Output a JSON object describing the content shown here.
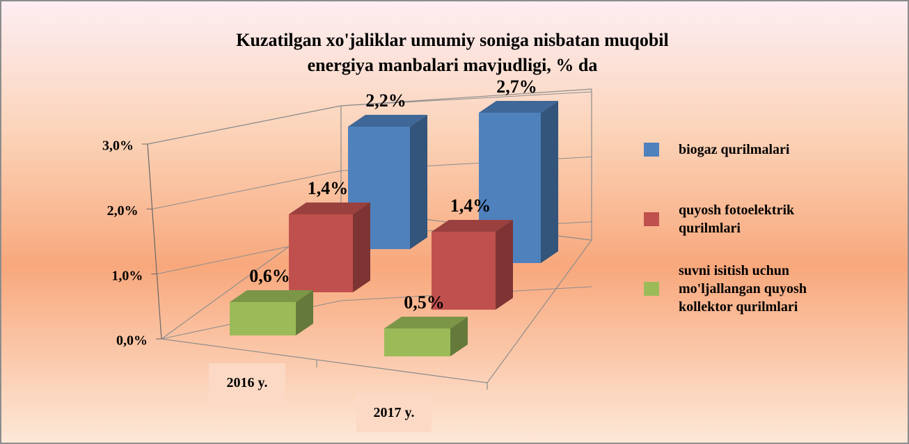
{
  "chart_data": {
    "type": "bar3d",
    "title": "Kuzatilgan xo'jaliklar umumiy soniga nisbatan muqobil energiya manbalari mavjudligi, % da",
    "categories": [
      "2016 y.",
      "2017 y."
    ],
    "series": [
      {
        "name": "biogaz qurilmalari",
        "color": "#4f81bd",
        "values": [
          2.2,
          2.7
        ],
        "value_labels": [
          "2,2%",
          "2,7%"
        ]
      },
      {
        "name": "quyosh fotoelektrik qurilmlari",
        "color": "#c0504d",
        "values": [
          1.4,
          1.4
        ],
        "value_labels": [
          "1,4%",
          "1,4%"
        ]
      },
      {
        "name": "suvni isitish uchun mo'ljallangan quyosh kollektor qurilmlari",
        "color": "#9bbb59",
        "values": [
          0.6,
          0.5
        ],
        "value_labels": [
          "0,6%",
          "0,5%"
        ]
      }
    ],
    "ylim": [
      0,
      3
    ],
    "yticks": [
      {
        "value": 0,
        "label": "0,0%"
      },
      {
        "value": 1,
        "label": "1,0%"
      },
      {
        "value": 2,
        "label": "2,0%"
      },
      {
        "value": 3,
        "label": "3,0%"
      }
    ],
    "grid": true,
    "legend": "right"
  }
}
